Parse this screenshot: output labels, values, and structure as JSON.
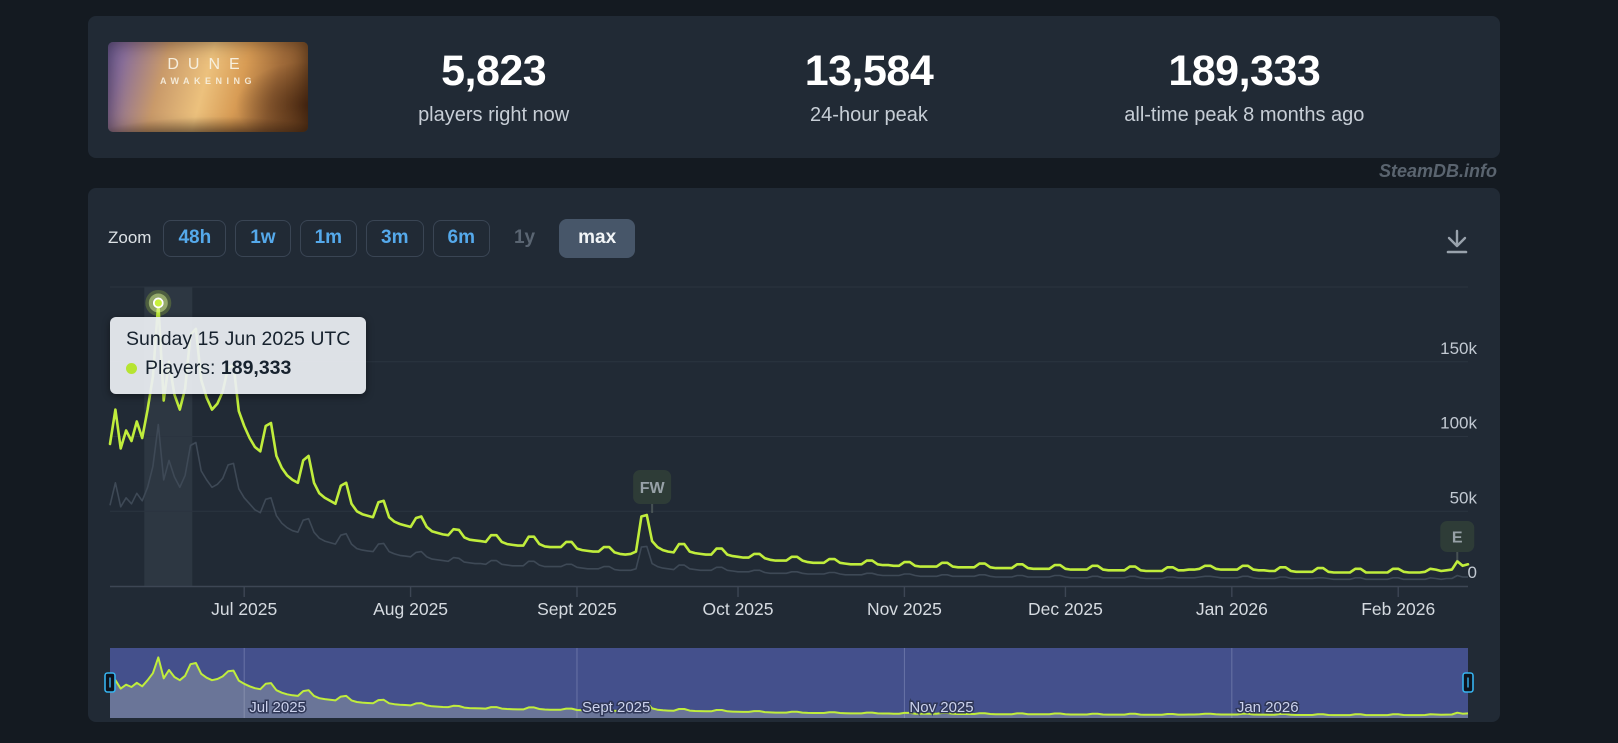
{
  "stats": {
    "game_title_line1": "DUNE",
    "game_title_line2": "AWAKENING",
    "players_now": "5,823",
    "players_now_label": "players right now",
    "peak_24h": "13,584",
    "peak_24h_label": "24-hour peak",
    "peak_all_time": "189,333",
    "peak_all_time_label": "all-time peak 8 months ago"
  },
  "watermark": "SteamDB.info",
  "toolbar": {
    "zoom_label": "Zoom",
    "ranges": [
      {
        "label": "48h",
        "state": "normal"
      },
      {
        "label": "1w",
        "state": "normal"
      },
      {
        "label": "1m",
        "state": "normal"
      },
      {
        "label": "3m",
        "state": "normal"
      },
      {
        "label": "6m",
        "state": "normal"
      },
      {
        "label": "1y",
        "state": "disabled"
      },
      {
        "label": "max",
        "state": "selected"
      }
    ],
    "download_icon": "download-icon"
  },
  "tooltip": {
    "date": "Sunday 15 Jun 2025 UTC",
    "series_label": "Players:",
    "value": "189,333"
  },
  "colors": {
    "accent_green": "#c0ed3c",
    "secondary_line": "#3e4956",
    "button_blue": "#55a9eb",
    "navigator_bg": "#44508c",
    "panel_bg": "#212a35",
    "page_bg": "#141a21"
  },
  "chart_data": {
    "type": "line",
    "unit": "players",
    "y_axis": {
      "max": 200000,
      "grid": true,
      "ticks": [
        {
          "label": "150k",
          "value": 150000
        },
        {
          "label": "100k",
          "value": 100000
        },
        {
          "label": "50k",
          "value": 50000
        },
        {
          "label": "0",
          "value": 0
        }
      ]
    },
    "x_axis": {
      "day0_date": "2025-06-06",
      "days_span": 253,
      "ticks": [
        {
          "label": "Jul 2025",
          "day": 25
        },
        {
          "label": "Aug 2025",
          "day": 56
        },
        {
          "label": "Sept 2025",
          "day": 87
        },
        {
          "label": "Oct 2025",
          "day": 117
        },
        {
          "label": "Nov 2025",
          "day": 148
        },
        {
          "label": "Dec 2025",
          "day": 178
        },
        {
          "label": "Jan 2026",
          "day": 209
        },
        {
          "label": "Feb 2026",
          "day": 240
        }
      ]
    },
    "highlight": {
      "day": 9,
      "value": 189333,
      "date": "Sunday 15 Jun 2025 UTC"
    },
    "flags": [
      {
        "label": "FW",
        "day": 101
      },
      {
        "label": "E",
        "day": 251
      }
    ],
    "navigator": {
      "labels": [
        {
          "text": "Jul 2025",
          "day": 25
        },
        {
          "text": "Sept 2025",
          "day": 87
        },
        {
          "text": "Nov 2025",
          "day": 148
        },
        {
          "text": "Jan 2026",
          "day": 209
        }
      ]
    },
    "series": [
      {
        "name": "Players",
        "color": "#c0ed3c",
        "values_k": [
          95,
          118,
          92,
          104,
          97,
          110,
          99,
          118,
          140,
          189.333,
          124,
          150,
          128,
          118,
          132,
          168,
          172,
          138,
          126,
          118,
          122,
          130,
          146,
          148,
          117,
          107,
          99,
          93,
          90,
          107,
          109,
          87,
          79,
          74,
          71,
          69,
          84,
          87,
          69,
          62,
          59,
          57,
          55,
          67,
          69,
          55,
          50,
          48,
          47,
          46,
          56,
          57,
          46,
          43,
          41.5,
          40.5,
          39.5,
          45.5,
          46.5,
          39.5,
          36.5,
          35.5,
          34.5,
          34,
          38,
          37.5,
          32.5,
          31,
          30.5,
          30,
          29.5,
          34,
          34,
          29.5,
          28,
          27.5,
          27,
          27,
          33,
          33,
          28,
          26.5,
          26,
          26,
          26,
          29.5,
          29.5,
          25,
          24,
          23.5,
          23,
          23,
          26,
          26,
          22.5,
          21.5,
          21,
          21.5,
          23,
          46.5,
          47.5,
          30,
          26,
          24,
          23,
          22.5,
          28,
          28,
          23,
          22,
          21.5,
          21,
          21,
          25,
          25,
          21,
          20,
          19.5,
          19,
          19,
          21.5,
          21.5,
          18.5,
          17.5,
          17,
          17,
          17,
          19.5,
          19.5,
          17,
          16,
          15.5,
          15.5,
          15.5,
          18,
          18,
          15.5,
          15,
          14.5,
          14.5,
          14.5,
          17,
          17,
          14.5,
          14,
          14,
          13.5,
          13.5,
          16,
          16,
          13.5,
          13,
          13,
          13,
          13,
          15.5,
          15.5,
          13,
          12.5,
          12.5,
          12.5,
          12.5,
          15,
          15,
          12.5,
          12,
          12,
          12,
          12,
          14.5,
          14.5,
          12,
          11.5,
          11.5,
          11.5,
          11.5,
          14,
          14,
          11.5,
          11,
          11,
          11,
          11,
          13.5,
          13.5,
          11,
          10.5,
          10.5,
          10.5,
          10.5,
          13,
          13,
          10.5,
          10,
          10,
          10,
          10,
          12.5,
          12.5,
          10.5,
          10.5,
          11,
          11,
          11.5,
          13.5,
          13.5,
          11.5,
          11,
          11,
          11,
          11,
          13.5,
          13.5,
          11,
          10.5,
          10.5,
          10,
          10,
          12.5,
          12.5,
          10,
          9.5,
          9.5,
          9.5,
          9.5,
          12,
          12,
          9.5,
          9,
          9,
          9,
          9,
          11.5,
          11.5,
          9,
          9,
          9,
          9,
          9,
          11.5,
          11.5,
          9.5,
          9,
          9,
          9,
          9.5,
          11.5,
          11,
          10,
          10.5,
          11,
          16.5,
          13.5,
          14.5
        ]
      },
      {
        "name": "Secondary",
        "color": "#3e4956",
        "values_k": [
          54,
          69,
          53,
          59,
          55,
          62,
          57,
          66,
          80,
          108,
          71,
          84,
          73,
          66,
          74,
          94,
          96,
          77,
          71,
          66,
          68,
          72,
          81,
          82,
          65,
          59,
          55,
          51,
          49,
          58,
          59,
          47,
          42,
          39,
          37,
          36,
          44,
          45,
          36,
          32,
          30,
          29,
          28,
          34,
          35,
          28,
          25,
          24,
          23.5,
          23,
          28,
          28.5,
          23,
          21.5,
          20.5,
          20,
          19.5,
          22.5,
          23,
          19.5,
          18,
          17.5,
          17,
          16.5,
          19,
          18.5,
          16,
          15.5,
          15,
          15,
          14.5,
          17,
          17,
          14.5,
          14,
          13.5,
          13.5,
          13.5,
          16.5,
          16.5,
          14,
          13,
          13,
          13,
          13,
          14.5,
          14.5,
          12.5,
          12,
          11.5,
          11.5,
          11.5,
          13,
          13,
          11,
          10.5,
          10.5,
          10.5,
          11.5,
          26,
          26.5,
          15,
          13,
          12,
          11.5,
          11,
          14,
          14,
          11.5,
          11,
          10.5,
          10.5,
          10.5,
          12.5,
          12.5,
          10.5,
          10,
          9.5,
          9.5,
          9.5,
          10.5,
          10.5,
          9,
          8.5,
          8.5,
          8.5,
          8.5,
          9.5,
          9.5,
          8.5,
          8,
          8,
          8,
          8,
          9,
          9,
          8,
          7.5,
          7.5,
          7.5,
          7.5,
          8.5,
          8.5,
          7.5,
          7,
          7,
          7,
          7,
          8,
          8,
          7,
          6.5,
          6.5,
          6.5,
          6.5,
          7.5,
          7.5,
          6.5,
          6.5,
          6.5,
          6.5,
          6.5,
          7.5,
          7.5,
          6.5,
          6,
          6,
          6,
          6,
          7,
          7,
          6,
          6,
          6,
          6,
          6,
          7,
          7,
          6,
          5.5,
          5.5,
          5.5,
          5.5,
          6.5,
          6.5,
          5.5,
          5.5,
          5.5,
          5.5,
          5.5,
          6.5,
          6.5,
          5.5,
          5,
          5,
          5,
          5,
          6,
          6,
          5.5,
          5.5,
          5.5,
          5.5,
          6,
          6.5,
          6.5,
          6,
          5.5,
          5.5,
          5.5,
          5.5,
          6.5,
          6.5,
          5.5,
          5,
          5,
          5,
          5,
          6,
          6,
          5,
          5,
          5,
          5,
          5,
          5.5,
          5.5,
          5,
          4.5,
          4.5,
          4.5,
          4.5,
          5.5,
          5.5,
          4.5,
          4.5,
          4.5,
          4.5,
          4.5,
          5.5,
          5.5,
          4.5,
          4.5,
          4.5,
          4.5,
          4.5,
          5.5,
          5,
          4.5,
          5,
          5,
          7,
          6,
          6
        ]
      }
    ]
  }
}
